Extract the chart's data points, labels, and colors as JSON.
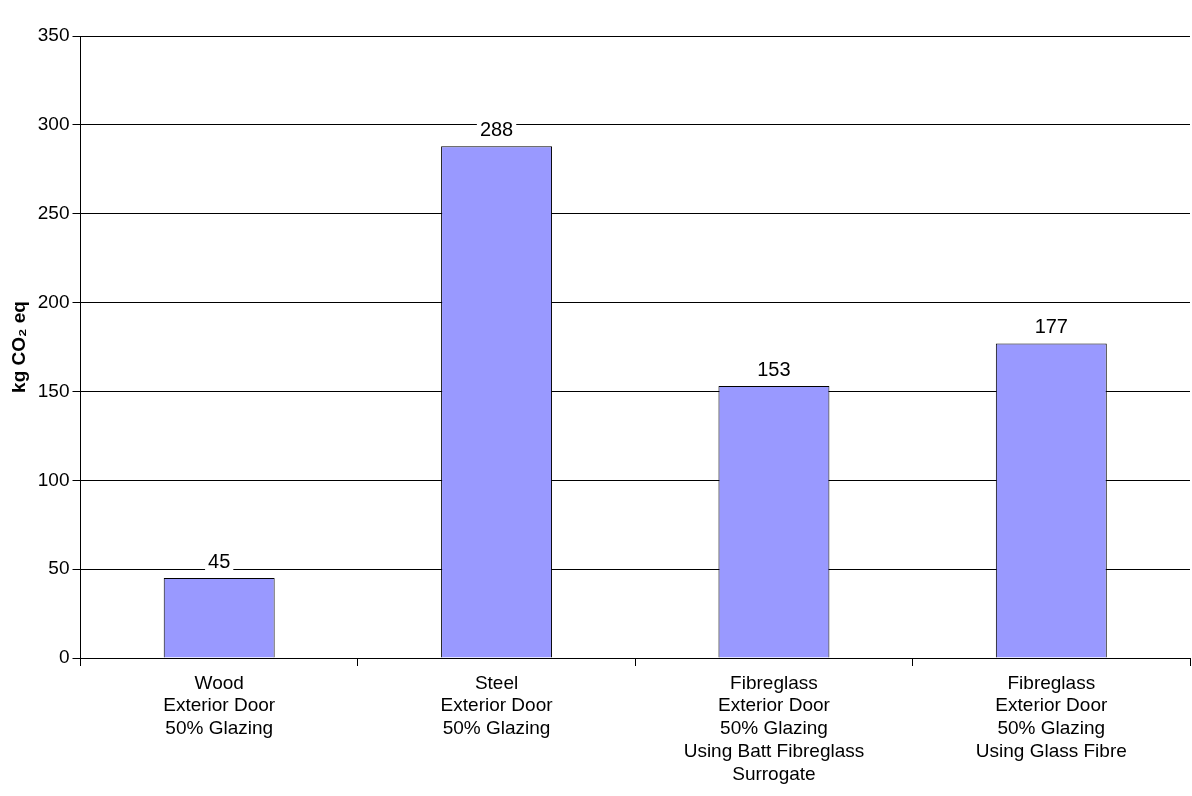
{
  "chart_data": {
    "type": "bar",
    "ylabel": "kg CO₂ eq",
    "categories": [
      "Wood\nExterior Door\n50% Glazing",
      "Steel\nExterior Door\n50% Glazing",
      "Fibreglass\nExterior Door\n50% Glazing\nUsing Batt Fibreglass\nSurrogate",
      "Fibreglass\nExterior Door\n50% Glazing\nUsing Glass Fibre"
    ],
    "values": [
      45,
      288,
      153,
      177
    ],
    "color": "#9999ff",
    "ylim": [
      0,
      350
    ],
    "yticks": [
      0,
      50,
      100,
      150,
      200,
      250,
      300,
      350
    ],
    "grid": "y",
    "data_labels": true,
    "legend": false
  }
}
